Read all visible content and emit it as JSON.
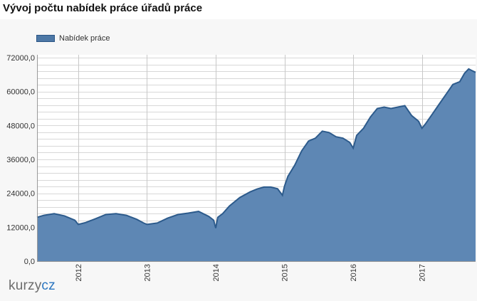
{
  "page": {
    "title": "Vývoj počtu nabídek práce úřadů práce"
  },
  "logo": {
    "text_a": "kurzy",
    "text_b": "cz"
  },
  "colors": {
    "area_fill": "#5e87b4",
    "area_stroke": "#2d5b8c",
    "grid": "#d8d8d8",
    "year_line": "#c8c8c8"
  },
  "chart_data": {
    "type": "area",
    "title": "Vývoj počtu nabídek práce úřadů práce",
    "xlabel": "",
    "ylabel": "",
    "legend": {
      "position": "top-left",
      "entries": [
        "Nabídek práce"
      ]
    },
    "grid": true,
    "ylim": [
      0,
      72000
    ],
    "yticks": [
      0,
      12000,
      24000,
      36000,
      48000,
      60000,
      72000
    ],
    "ytick_labels": [
      "0,0",
      "12000,0",
      "24000,0",
      "36000,0",
      "48000,0",
      "60000,0",
      "72000,0"
    ],
    "xlim": [
      2011.4,
      2017.78
    ],
    "xticks": [
      2012,
      2013,
      2014,
      2015,
      2016,
      2017
    ],
    "xtick_labels": [
      "2012",
      "2013",
      "2014",
      "2015",
      "2016",
      "2017"
    ],
    "series": [
      {
        "name": "Nabídek práce",
        "x": [
          2011.4,
          2011.5,
          2011.65,
          2011.8,
          2011.95,
          2012.0,
          2012.1,
          2012.25,
          2012.4,
          2012.55,
          2012.7,
          2012.85,
          2012.95,
          2013.0,
          2013.15,
          2013.3,
          2013.45,
          2013.6,
          2013.75,
          2013.9,
          2013.97,
          2014.0,
          2014.03,
          2014.1,
          2014.2,
          2014.35,
          2014.5,
          2014.6,
          2014.7,
          2014.8,
          2014.9,
          2014.97,
          2015.0,
          2015.05,
          2015.15,
          2015.25,
          2015.35,
          2015.45,
          2015.55,
          2015.65,
          2015.75,
          2015.85,
          2015.95,
          2016.0,
          2016.05,
          2016.15,
          2016.25,
          2016.35,
          2016.45,
          2016.55,
          2016.65,
          2016.75,
          2016.85,
          2016.95,
          2017.0,
          2017.05,
          2017.15,
          2017.25,
          2017.35,
          2017.45,
          2017.55,
          2017.62,
          2017.68,
          2017.72,
          2017.78
        ],
        "values": [
          15500,
          16200,
          16800,
          16000,
          14500,
          13000,
          13600,
          15000,
          16500,
          16800,
          16200,
          14800,
          13500,
          13000,
          13500,
          15200,
          16500,
          17000,
          17600,
          15800,
          14500,
          11700,
          15500,
          16800,
          19500,
          22500,
          24500,
          25500,
          26200,
          26200,
          25600,
          23300,
          26500,
          30000,
          34000,
          39000,
          42500,
          43500,
          46000,
          45500,
          44000,
          43500,
          42000,
          40000,
          44500,
          47000,
          51000,
          54000,
          54500,
          54000,
          54500,
          55000,
          51500,
          49500,
          47000,
          48500,
          52000,
          55500,
          59000,
          62500,
          63500,
          66500,
          68000,
          67500,
          66800
        ]
      }
    ]
  }
}
